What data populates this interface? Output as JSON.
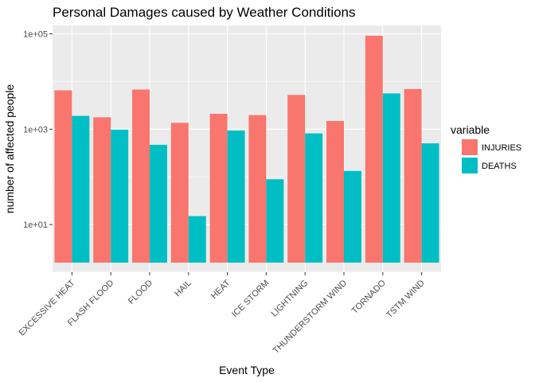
{
  "chart_data": {
    "type": "bar",
    "title": "Personal Damages caused by Weather Conditions",
    "xlabel": "Event Type",
    "ylabel": "number of affected people",
    "y_scale": "log10",
    "ylim": [
      1,
      150000
    ],
    "y_ticks": [
      10,
      1000,
      100000
    ],
    "y_tick_labels": [
      "1e+01",
      "1e+03",
      "1e+05"
    ],
    "grid": true,
    "legend_position": "right",
    "legend_title": "variable",
    "categories": [
      "EXCESSIVE HEAT",
      "FLASH FLOOD",
      "FLOOD",
      "HAIL",
      "HEAT",
      "ICE STORM",
      "LIGHTNING",
      "THUNDERSTORM WIND",
      "TORNADO",
      "TSTM WIND"
    ],
    "series": [
      {
        "name": "INJURIES",
        "color": "#F8766D",
        "values": [
          6525,
          1777,
          6789,
          1361,
          2100,
          1975,
          5230,
          1488,
          91346,
          6957
        ]
      },
      {
        "name": "DEATHS",
        "color": "#00BFC4",
        "values": [
          1903,
          978,
          470,
          15,
          937,
          89,
          816,
          133,
          5633,
          504
        ]
      }
    ]
  }
}
